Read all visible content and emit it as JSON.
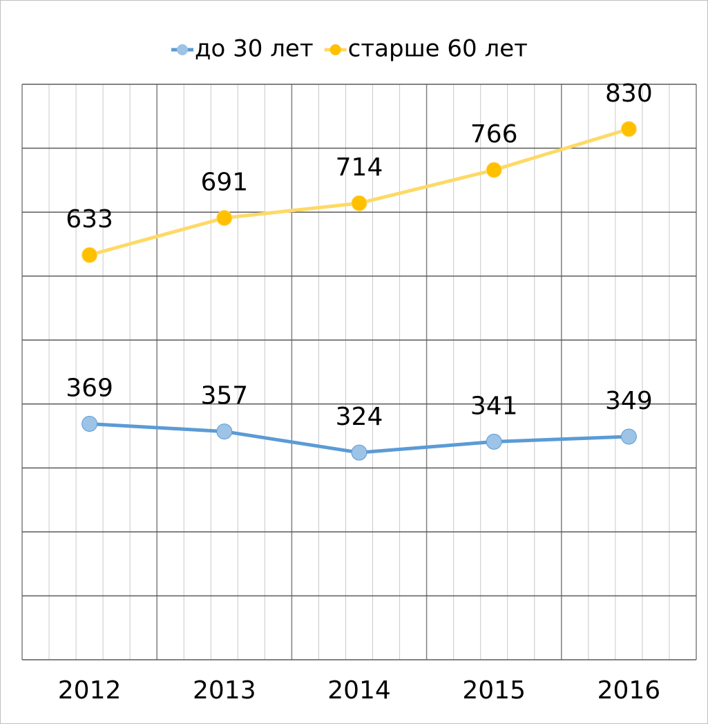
{
  "chart_data": {
    "type": "line",
    "categories": [
      "2012",
      "2013",
      "2014",
      "2015",
      "2016"
    ],
    "series": [
      {
        "name": "до 30 лет",
        "color": "#5b9bd5",
        "marker_color": "#9dc3e6",
        "values": [
          369,
          357,
          324,
          341,
          349
        ]
      },
      {
        "name": "старше 60 лет",
        "color": "#ffd966",
        "marker_color": "#ffc000",
        "values": [
          633,
          691,
          714,
          766,
          830
        ]
      }
    ],
    "ylim": [
      0,
      900
    ],
    "yticks": [
      0,
      100,
      200,
      300,
      400,
      500,
      600,
      700,
      800,
      900
    ],
    "grid": true,
    "legend": "top"
  }
}
